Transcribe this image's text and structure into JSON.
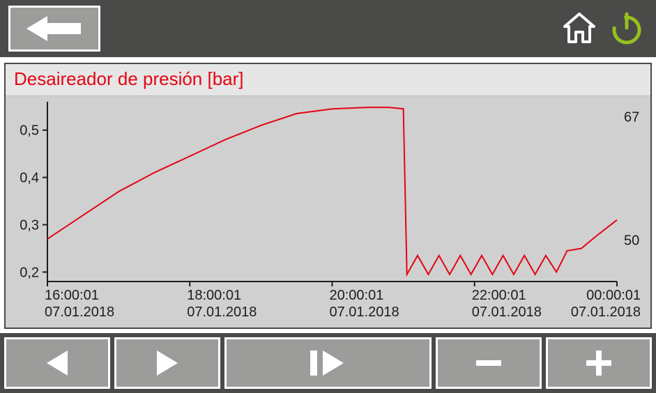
{
  "header": {
    "back_icon_color": "#ffffff",
    "home_icon_color": "#ffffff",
    "power_icon_color": "#95c11f",
    "bar_bg": "#4a4a49",
    "button_bg": "#9c9c9b",
    "button_border": "#ffffff"
  },
  "chart": {
    "title": "Desaireador de presión [bar]",
    "title_color": "#e30613",
    "title_fontsize": 26,
    "panel_bg": "#d0d0d0",
    "title_bg": "#e6e6e6",
    "line_color": "#e30613",
    "line_width": 2,
    "axis_color": "#1d1d1b",
    "tick_font_color": "#1d1d1b",
    "tick_fontsize": 20,
    "y_left": {
      "min": 0.18,
      "max": 0.56,
      "ticks": [
        0.2,
        0.3,
        0.4,
        0.5
      ],
      "tick_labels": [
        "0,2",
        "0,3",
        "0,4",
        "0,5"
      ]
    },
    "y_right": {
      "labels": [
        {
          "text": "67",
          "y_value": 0.528
        },
        {
          "text": "50",
          "y_value": 0.268
        }
      ]
    },
    "x": {
      "min": 16.0,
      "max": 24.0,
      "ticks": [
        16.0,
        18.0,
        20.0,
        22.0,
        24.0
      ],
      "tick_labels_line1": [
        "16:00:01",
        "18:00:01",
        "20:00:01",
        "22:00:01",
        "00:00:01"
      ],
      "tick_labels_line2": [
        "07.01.2018",
        "07.01.2018",
        "07.01.2018",
        "07.01.2018",
        "07.01.2018"
      ]
    },
    "series": [
      {
        "x": 16.0,
        "y": 0.27
      },
      {
        "x": 16.5,
        "y": 0.32
      },
      {
        "x": 17.0,
        "y": 0.37
      },
      {
        "x": 17.5,
        "y": 0.41
      },
      {
        "x": 18.0,
        "y": 0.445
      },
      {
        "x": 18.5,
        "y": 0.48
      },
      {
        "x": 19.0,
        "y": 0.51
      },
      {
        "x": 19.5,
        "y": 0.535
      },
      {
        "x": 20.0,
        "y": 0.545
      },
      {
        "x": 20.5,
        "y": 0.548
      },
      {
        "x": 20.8,
        "y": 0.548
      },
      {
        "x": 21.0,
        "y": 0.545
      },
      {
        "x": 21.05,
        "y": 0.195
      },
      {
        "x": 21.2,
        "y": 0.235
      },
      {
        "x": 21.35,
        "y": 0.195
      },
      {
        "x": 21.5,
        "y": 0.235
      },
      {
        "x": 21.65,
        "y": 0.195
      },
      {
        "x": 21.8,
        "y": 0.235
      },
      {
        "x": 21.95,
        "y": 0.195
      },
      {
        "x": 22.1,
        "y": 0.235
      },
      {
        "x": 22.25,
        "y": 0.195
      },
      {
        "x": 22.4,
        "y": 0.235
      },
      {
        "x": 22.55,
        "y": 0.195
      },
      {
        "x": 22.7,
        "y": 0.235
      },
      {
        "x": 22.85,
        "y": 0.195
      },
      {
        "x": 23.0,
        "y": 0.235
      },
      {
        "x": 23.15,
        "y": 0.2
      },
      {
        "x": 23.3,
        "y": 0.245
      },
      {
        "x": 23.5,
        "y": 0.25
      },
      {
        "x": 23.7,
        "y": 0.275
      },
      {
        "x": 24.0,
        "y": 0.31
      }
    ]
  },
  "footer": {
    "bar_bg": "#4a4a49",
    "button_bg": "#9c9c9b",
    "button_border": "#ffffff",
    "icon_color": "#ffffff"
  }
}
